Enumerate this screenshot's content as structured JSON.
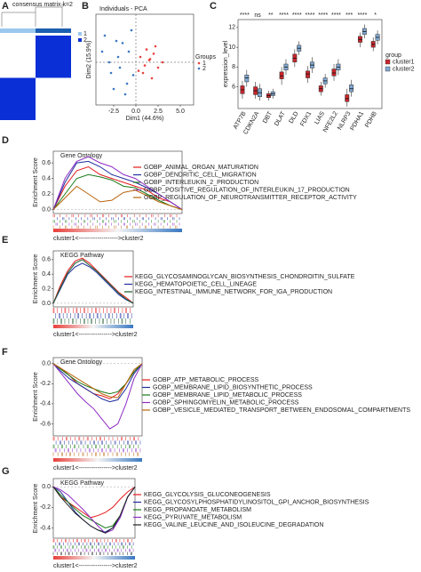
{
  "chart_data": [
    {
      "type": "heatmap",
      "label": "A",
      "title": "consensus matrix k=2",
      "legend": [
        "1",
        "2"
      ],
      "colors": [
        "#ffffff",
        "#0b2fd6"
      ],
      "values": [
        [
          0,
          1
        ],
        [
          1,
          0
        ]
      ]
    },
    {
      "type": "scatter",
      "label": "B",
      "title": "Individuals - PCA",
      "xlabel": "Dim1 (44.6%)",
      "ylabel": "Dim2 (15.9%)",
      "legend_title": "Groups",
      "xlim": [
        -4.5,
        6.5
      ],
      "ylim": [
        -4,
        4.5
      ],
      "xticks": [
        {
          "value": -2.5,
          "label": "-2.5"
        },
        {
          "value": 0,
          "label": "0.0"
        },
        {
          "value": 2.5,
          "label": "2.5"
        },
        {
          "value": 5,
          "label": "5.0"
        }
      ],
      "series": [
        {
          "name": "1",
          "color": "#e8413c",
          "x": [
            0.5,
            1.0,
            1.5,
            2.0,
            2.5,
            1.2,
            0.8,
            3.0,
            1.8,
            2.2,
            0.3,
            1.6
          ],
          "values": [
            0.5,
            -0.3,
            0.2,
            0.8,
            -0.5,
            1.2,
            -1.0,
            0.0,
            -1.5,
            1.5,
            -0.8,
            0.3
          ]
        },
        {
          "name": "2",
          "color": "#3a78c2",
          "x": [
            -3.5,
            -2.8,
            -2.0,
            -1.5,
            -1.0,
            -0.5,
            -2.5,
            -3.0,
            -1.8,
            -0.8,
            -2.2,
            -1.2,
            -3.8,
            -0.3
          ],
          "values": [
            2.5,
            -1.0,
            0.5,
            1.8,
            -2.0,
            3.0,
            -2.5,
            0.0,
            -0.5,
            1.0,
            2.0,
            -3.0,
            1.0,
            -1.2
          ]
        }
      ]
    },
    {
      "type": "box",
      "label": "C",
      "ylabel": "expression_level",
      "legend_title": "group",
      "categories": [
        "ATP7B",
        "CDKN2A",
        "DBT",
        "DLAT",
        "DLD",
        "FDX1",
        "LIAS",
        "NFE2L2",
        "NLRP3",
        "PDHA1",
        "PDHB"
      ],
      "significance": [
        "****",
        "ns",
        "**",
        "****",
        "****",
        "****",
        "****",
        "****",
        "***",
        "****",
        "*"
      ],
      "ylim": [
        3.8,
        12.8
      ],
      "yticks": [
        6,
        8,
        10,
        12
      ],
      "series": [
        {
          "name": "cluster1",
          "color": "#c9252c",
          "values": [
            [
              4.8,
              5.3,
              5.7,
              6.1,
              6.6
            ],
            [
              4.8,
              5.2,
              5.6,
              6.0,
              6.5
            ],
            [
              4.6,
              4.9,
              5.1,
              5.3,
              5.6
            ],
            [
              6.2,
              6.8,
              7.1,
              7.5,
              8.0
            ],
            [
              8.0,
              8.5,
              8.9,
              9.3,
              9.8
            ],
            [
              6.4,
              6.9,
              7.3,
              7.6,
              8.1
            ],
            [
              5.1,
              5.5,
              5.8,
              6.1,
              6.5
            ],
            [
              6.6,
              7.1,
              7.4,
              7.8,
              8.3
            ],
            [
              4.0,
              4.5,
              4.8,
              5.2,
              5.8
            ],
            [
              10.0,
              10.5,
              10.8,
              11.1,
              11.5
            ],
            [
              9.6,
              10.0,
              10.3,
              10.6,
              11.0
            ]
          ]
        },
        {
          "name": "cluster2",
          "color": "#7fa8d1",
          "values": [
            [
              6.0,
              6.5,
              6.9,
              7.2,
              7.7
            ],
            [
              4.6,
              5.0,
              5.4,
              5.8,
              6.3
            ],
            [
              4.8,
              5.1,
              5.3,
              5.5,
              5.8
            ],
            [
              7.2,
              7.7,
              8.0,
              8.3,
              8.8
            ],
            [
              9.2,
              9.6,
              9.9,
              10.2,
              10.6
            ],
            [
              7.4,
              7.9,
              8.2,
              8.5,
              9.0
            ],
            [
              5.9,
              6.3,
              6.6,
              6.9,
              7.3
            ],
            [
              7.2,
              7.7,
              8.0,
              8.3,
              8.8
            ],
            [
              5.0,
              5.5,
              5.8,
              6.2,
              6.7
            ],
            [
              10.9,
              11.3,
              11.6,
              11.9,
              12.3
            ],
            [
              10.3,
              10.7,
              11.0,
              11.3,
              11.7
            ]
          ]
        }
      ]
    },
    {
      "type": "gsea",
      "label": "D",
      "title": "Gene Ontology",
      "ylabel": "Enrichment Score",
      "xlabel": "cluster1<------------------->cluster2",
      "ylim": [
        -0.05,
        0.75
      ],
      "yticks": [
        {
          "value": 0,
          "label": "0.0"
        },
        0.2,
        0.4,
        0.6
      ],
      "series": [
        {
          "name": "GOBP_ANIMAL_ORGAN_MATURATION",
          "color": "#e41a1c",
          "values": [
            0,
            0.3,
            0.5,
            0.55,
            0.45,
            0.4,
            0.35,
            0.3,
            0.25,
            0.15,
            0.1,
            0
          ]
        },
        {
          "name": "GOBP_DENDRITIC_CELL_MIGRATION",
          "color": "#1f2f9e",
          "values": [
            0,
            0.35,
            0.6,
            0.62,
            0.55,
            0.45,
            0.4,
            0.35,
            0.28,
            0.2,
            0.1,
            0
          ]
        },
        {
          "name": "GOBP_INTERLEUKIN_2_PRODUCTION",
          "color": "#1a7a1a",
          "values": [
            0,
            0.2,
            0.4,
            0.45,
            0.42,
            0.38,
            0.3,
            0.28,
            0.2,
            0.12,
            0.05,
            0
          ]
        },
        {
          "name": "GOBP_POSITIVE_REGULATION_OF_INTERLEUKIN_17_PRODUCTION",
          "color": "#8e2cc4",
          "values": [
            0,
            0.4,
            0.62,
            0.68,
            0.6,
            0.55,
            0.45,
            0.4,
            0.3,
            0.2,
            0.1,
            0
          ]
        },
        {
          "name": "GOBP_REGULATION_OF_NEUROTRANSMITTER_RECEPTOR_ACTIVITY",
          "color": "#b8630a",
          "values": [
            0,
            0.15,
            0.3,
            0.2,
            0.1,
            0.12,
            0.22,
            0.25,
            0.18,
            0.1,
            0.05,
            0
          ]
        }
      ]
    },
    {
      "type": "gsea",
      "label": "E",
      "title": "KEGG Pathway",
      "ylabel": "Enrichment Score",
      "xlabel": "cluster1<---------------->cluster2",
      "ylim": [
        -0.05,
        0.72
      ],
      "yticks": [
        {
          "value": 0,
          "label": "0.0"
        },
        0.2,
        0.4,
        0.6
      ],
      "series": [
        {
          "name": "KEGG_GLYCOSAMINOGLYCAN_BIOSYNTHESIS_CHONDROITIN_SULFATE",
          "color": "#e41a1c",
          "values": [
            0,
            0.25,
            0.45,
            0.58,
            0.62,
            0.55,
            0.45,
            0.35,
            0.25,
            0.15,
            0.08,
            0
          ]
        },
        {
          "name": "KEGG_HEMATOPOIETIC_CELL_LINEAGE",
          "color": "#1f2f9e",
          "values": [
            0,
            0.2,
            0.4,
            0.5,
            0.55,
            0.5,
            0.42,
            0.32,
            0.22,
            0.12,
            0.05,
            0
          ]
        },
        {
          "name": "KEGG_INTESTINAL_IMMUNE_NETWORK_FOR_IGA_PRODUCTION",
          "color": "#1a5a2a",
          "values": [
            0,
            0.22,
            0.42,
            0.55,
            0.6,
            0.52,
            0.44,
            0.34,
            0.24,
            0.14,
            0.06,
            0
          ]
        }
      ]
    },
    {
      "type": "gsea",
      "label": "F",
      "title": "Gene Ontology",
      "ylabel": "Enrichment Score",
      "xlabel": "cluster1<---------------->cluster2",
      "ylim": [
        -0.72,
        0.06
      ],
      "yticks": [
        {
          "value": 0,
          "label": "0.0"
        },
        -0.2,
        -0.4,
        -0.6
      ],
      "series": [
        {
          "name": "GOBP_ATP_METABOLIC_PROCESS",
          "color": "#e41a1c",
          "values": [
            0,
            -0.05,
            -0.12,
            -0.2,
            -0.25,
            -0.3,
            -0.32,
            -0.35,
            -0.3,
            -0.2,
            -0.08,
            0
          ]
        },
        {
          "name": "GOBP_MEMBRANE_LIPID_BIOSYNTHETIC_PROCESS",
          "color": "#1f2f9e",
          "values": [
            0,
            -0.08,
            -0.15,
            -0.2,
            -0.25,
            -0.3,
            -0.35,
            -0.38,
            -0.36,
            -0.25,
            -0.1,
            0
          ]
        },
        {
          "name": "GOBP_MEMBRANE_LIPID_METABOLIC_PROCESS",
          "color": "#1a7a1a",
          "values": [
            0,
            -0.06,
            -0.12,
            -0.18,
            -0.22,
            -0.25,
            -0.28,
            -0.3,
            -0.28,
            -0.2,
            -0.08,
            0
          ]
        },
        {
          "name": "GOBP_SPHINGOMYELIN_METABOLIC_PROCESS",
          "color": "#8e2cc4",
          "values": [
            0,
            -0.1,
            -0.2,
            -0.3,
            -0.38,
            -0.45,
            -0.55,
            -0.65,
            -0.6,
            -0.4,
            -0.15,
            0
          ]
        },
        {
          "name": "GOBP_VESICLE_MEDIATED_TRANSPORT_BETWEEN_ENDOSOMAL_COMPARTMENTS",
          "color": "#b8630a",
          "values": [
            0,
            -0.05,
            -0.1,
            -0.15,
            -0.2,
            -0.25,
            -0.3,
            -0.33,
            -0.34,
            -0.2,
            -0.06,
            0
          ]
        }
      ]
    },
    {
      "type": "gsea",
      "label": "G",
      "title": "KEGG Pathway",
      "ylabel": "Enrichment Score",
      "xlabel": "cluster1<---------------->cluster2",
      "ylim": [
        -0.5,
        0.08
      ],
      "yticks": [
        {
          "value": 0,
          "label": "0.0"
        },
        -0.2,
        -0.4
      ],
      "series": [
        {
          "name": "KEGG_GLYCOLYSIS_GLUCONEOGENESIS",
          "color": "#e41a1c",
          "values": [
            0,
            -0.1,
            -0.15,
            -0.2,
            -0.25,
            -0.3,
            -0.28,
            -0.25,
            -0.2,
            -0.12,
            -0.05,
            0
          ]
        },
        {
          "name": "KEGG_GLYCOSYLPHOSPHATIDYLINOSITOL_GPI_ANCHOR_BIOSYNTHESIS",
          "color": "#1f2f9e",
          "values": [
            0,
            -0.05,
            -0.15,
            -0.25,
            -0.32,
            -0.38,
            -0.42,
            -0.44,
            -0.4,
            -0.3,
            -0.1,
            0
          ]
        },
        {
          "name": "KEGG_PROPANOATE_METABOLISM",
          "color": "#1a7a1a",
          "values": [
            0,
            -0.08,
            -0.15,
            -0.22,
            -0.28,
            -0.32,
            -0.36,
            -0.4,
            -0.38,
            -0.28,
            -0.1,
            0
          ]
        },
        {
          "name": "KEGG_PYRUVATE_METABOLISM",
          "color": "#8e2cc4",
          "values": [
            0,
            -0.03,
            -0.08,
            -0.15,
            -0.22,
            -0.3,
            -0.38,
            -0.45,
            -0.42,
            -0.3,
            -0.1,
            0
          ]
        },
        {
          "name": "KEGG_VALINE_LEUCINE_AND_ISOLEUCINE_DEGRADATION",
          "color": "#222222",
          "values": [
            0,
            -0.1,
            -0.18,
            -0.26,
            -0.32,
            -0.38,
            -0.42,
            -0.45,
            -0.4,
            -0.28,
            -0.1,
            0
          ]
        }
      ]
    }
  ]
}
